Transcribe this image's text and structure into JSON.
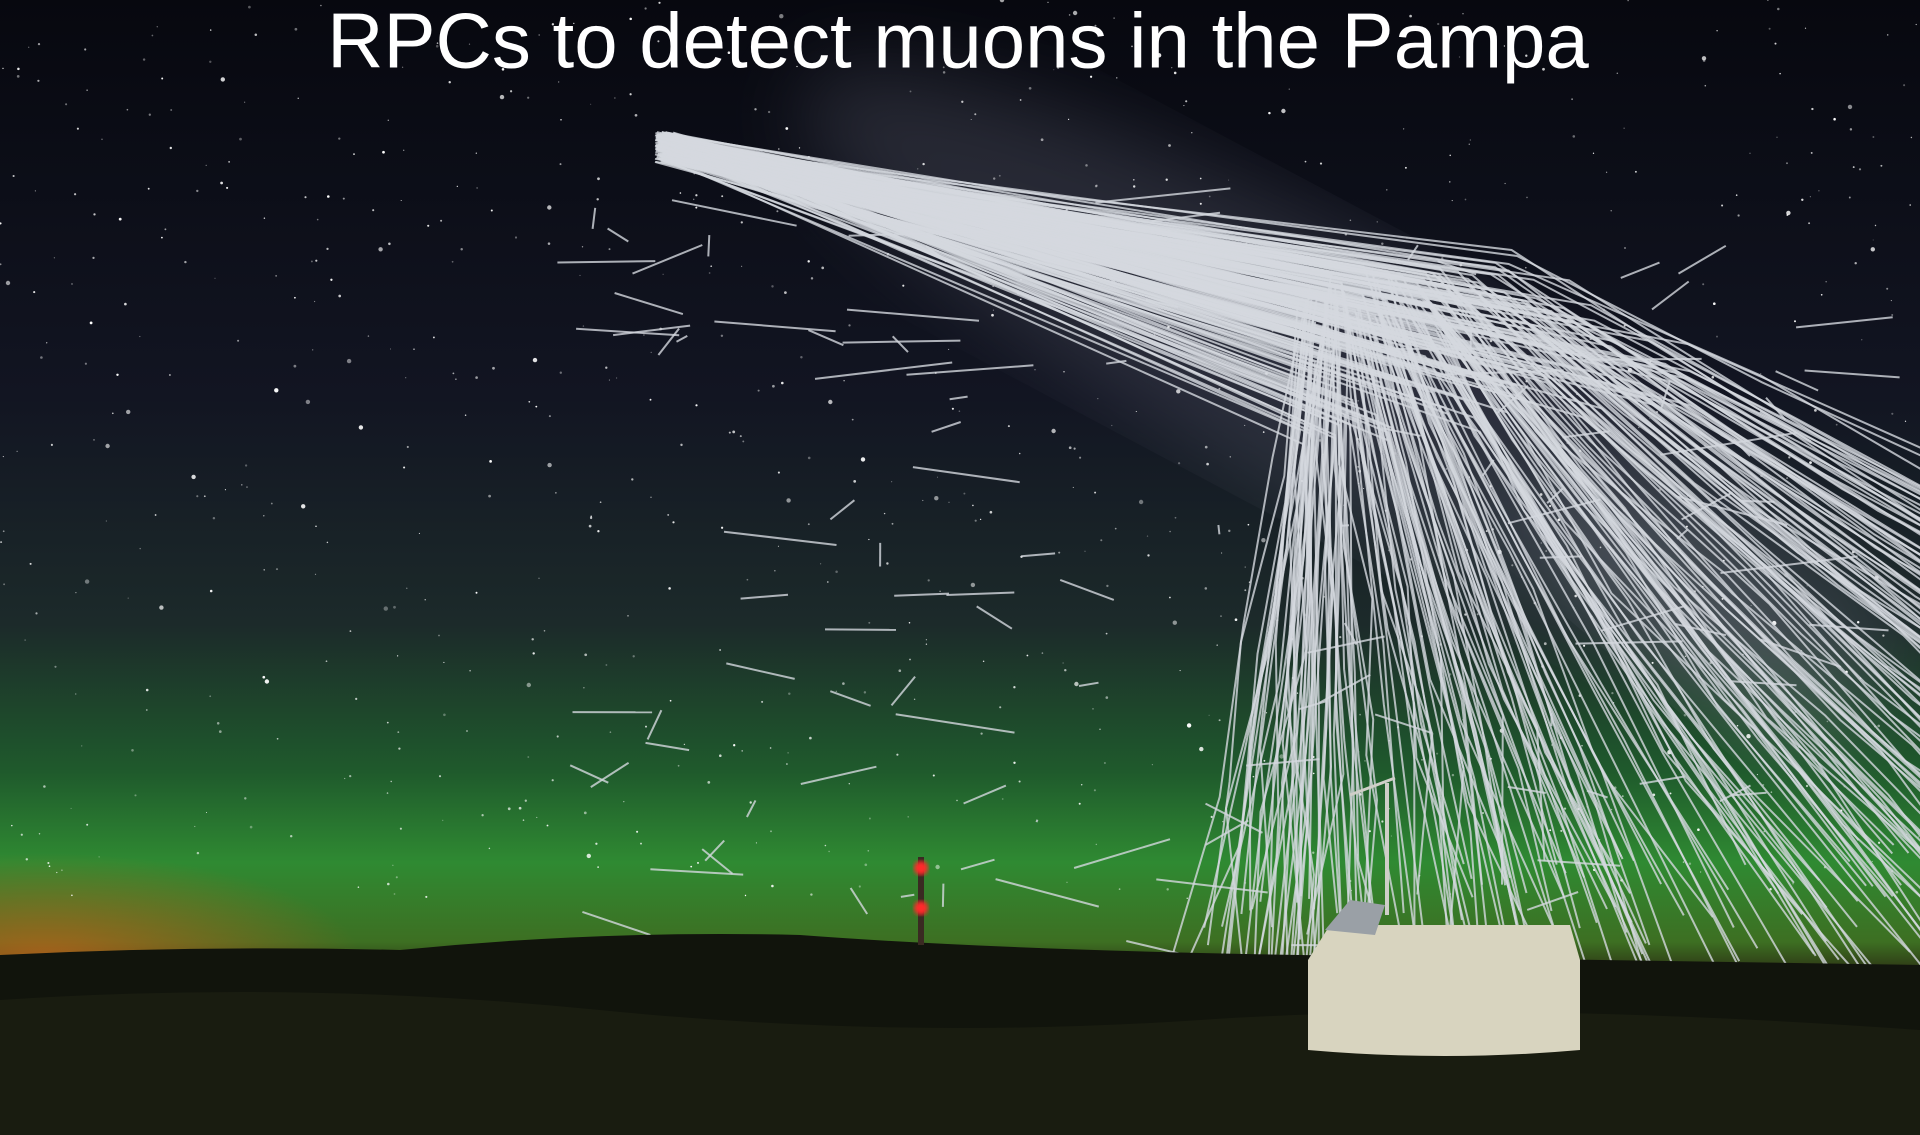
{
  "title": "RPCs to detect muons in the Pampa"
}
